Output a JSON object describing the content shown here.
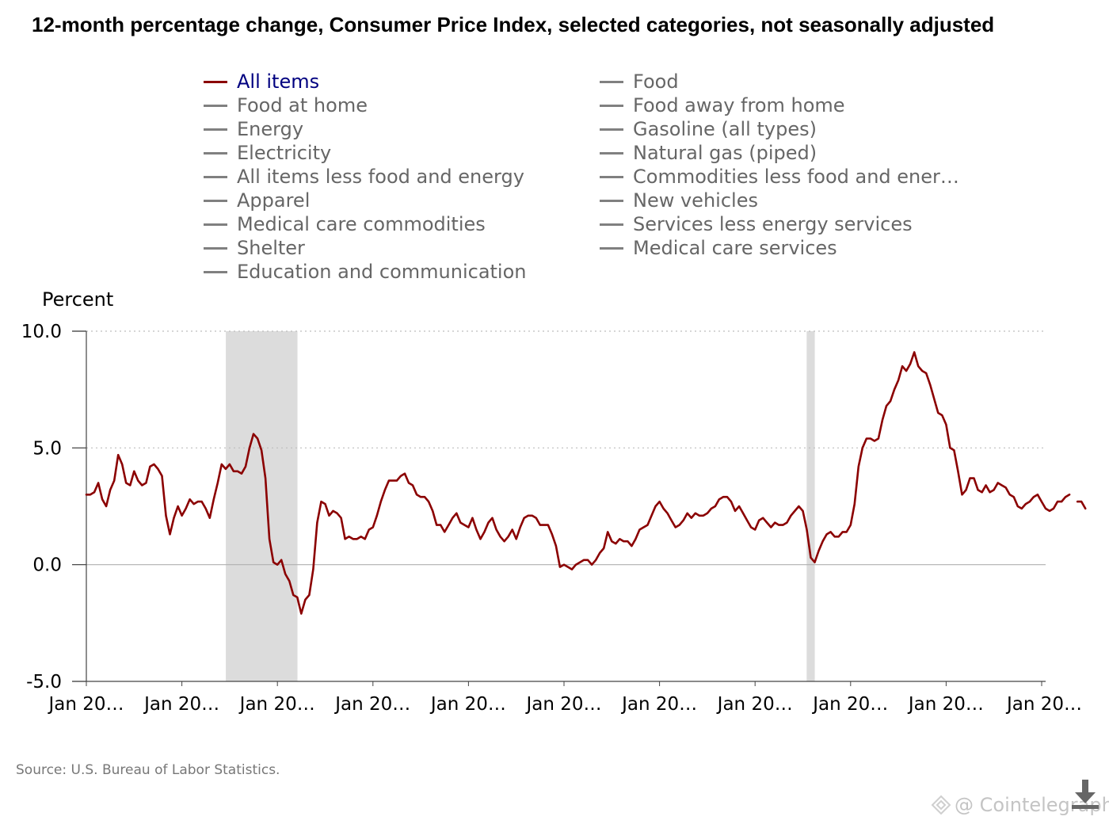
{
  "title": "12-month percentage change, Consumer Price Index, selected categories, not seasonally adjusted",
  "legend": {
    "items": [
      {
        "label": "All items",
        "active": true,
        "col": 0,
        "row": 0
      },
      {
        "label": "Food at home",
        "active": false,
        "col": 0,
        "row": 1
      },
      {
        "label": "Energy",
        "active": false,
        "col": 0,
        "row": 2
      },
      {
        "label": "Electricity",
        "active": false,
        "col": 0,
        "row": 3
      },
      {
        "label": "All items less food and energy",
        "active": false,
        "col": 0,
        "row": 4
      },
      {
        "label": "Apparel",
        "active": false,
        "col": 0,
        "row": 5
      },
      {
        "label": "Medical care commodities",
        "active": false,
        "col": 0,
        "row": 6
      },
      {
        "label": "Shelter",
        "active": false,
        "col": 0,
        "row": 7
      },
      {
        "label": "Education and communication",
        "active": false,
        "col": 0,
        "row": 8
      },
      {
        "label": "Food",
        "active": false,
        "col": 1,
        "row": 0
      },
      {
        "label": "Food away from home",
        "active": false,
        "col": 1,
        "row": 1
      },
      {
        "label": "Gasoline (all types)",
        "active": false,
        "col": 1,
        "row": 2
      },
      {
        "label": "Natural gas (piped)",
        "active": false,
        "col": 1,
        "row": 3
      },
      {
        "label": "Commodities less food and ener…",
        "active": false,
        "col": 1,
        "row": 4
      },
      {
        "label": "New vehicles",
        "active": false,
        "col": 1,
        "row": 5
      },
      {
        "label": "Services less energy services",
        "active": false,
        "col": 1,
        "row": 6
      },
      {
        "label": "Medical care services",
        "active": false,
        "col": 1,
        "row": 7
      }
    ]
  },
  "source": "Source: U.S. Bureau of Labor Statistics.",
  "watermark": "@ Cointelegraph",
  "colors": {
    "series": "#8b0000",
    "active_legend_text": "#000080",
    "inactive_legend": "#808080",
    "recession_band": "#dcdcdc",
    "grid": "#bdbdbd"
  },
  "icons": {
    "download": "download-icon",
    "watermark_logo": "cointelegraph-logo-icon"
  },
  "chart_data": {
    "type": "line",
    "title": "12-month percentage change, Consumer Price Index, selected categories, not seasonally adjusted",
    "ylabel": "Percent",
    "xlabel": "",
    "ylim": [
      -5.0,
      10.0
    ],
    "yticks": [
      -5.0,
      0.0,
      5.0,
      10.0
    ],
    "ytick_labels": [
      "-5.0",
      "0.0",
      "5.0",
      "10.0"
    ],
    "xlim": [
      2005.0,
      2025.083
    ],
    "xticks": [
      2005,
      2007,
      2009,
      2011,
      2013,
      2015,
      2017,
      2019,
      2021,
      2023,
      2025
    ],
    "xtick_labels": [
      "Jan 20…",
      "Jan 20…",
      "Jan 20…",
      "Jan 20…",
      "Jan 20…",
      "Jan 20…",
      "Jan 20…",
      "Jan 20…",
      "Jan 20…",
      "Jan 20…",
      "Jan 20…"
    ],
    "grid": "horizontal dotted at 5.0 and 10.0; solid at 0.0",
    "legend_placement": "top, two columns",
    "recessions": [
      [
        2007.92,
        2009.42
      ],
      [
        2020.08,
        2020.25
      ]
    ],
    "series": [
      {
        "name": "All items",
        "x_start": 2005.0,
        "x_step": 0.08333,
        "values": [
          3.0,
          3.0,
          3.1,
          3.5,
          2.8,
          2.5,
          3.2,
          3.6,
          4.7,
          4.3,
          3.5,
          3.4,
          4.0,
          3.6,
          3.4,
          3.5,
          4.2,
          4.3,
          4.1,
          3.8,
          2.1,
          1.3,
          2.0,
          2.5,
          2.1,
          2.4,
          2.8,
          2.6,
          2.7,
          2.7,
          2.4,
          2.0,
          2.8,
          3.5,
          4.3,
          4.1,
          4.3,
          4.0,
          4.0,
          3.9,
          4.2,
          5.0,
          5.6,
          5.4,
          4.9,
          3.7,
          1.1,
          0.1,
          0.0,
          0.2,
          -0.4,
          -0.7,
          -1.3,
          -1.4,
          -2.1,
          -1.5,
          -1.3,
          -0.2,
          1.8,
          2.7,
          2.6,
          2.1,
          2.3,
          2.2,
          2.0,
          1.1,
          1.2,
          1.1,
          1.1,
          1.2,
          1.1,
          1.5,
          1.6,
          2.1,
          2.7,
          3.2,
          3.6,
          3.6,
          3.6,
          3.8,
          3.9,
          3.5,
          3.4,
          3.0,
          2.9,
          2.9,
          2.7,
          2.3,
          1.7,
          1.7,
          1.4,
          1.7,
          2.0,
          2.2,
          1.8,
          1.7,
          1.6,
          2.0,
          1.5,
          1.1,
          1.4,
          1.8,
          2.0,
          1.5,
          1.2,
          1.0,
          1.2,
          1.5,
          1.1,
          1.6,
          2.0,
          2.1,
          2.1,
          2.0,
          1.7,
          1.7,
          1.7,
          1.3,
          0.8,
          -0.1,
          0.0,
          -0.1,
          -0.2,
          0.0,
          0.1,
          0.2,
          0.2,
          0.0,
          0.2,
          0.5,
          0.7,
          1.4,
          1.0,
          0.9,
          1.1,
          1.0,
          1.0,
          0.8,
          1.1,
          1.5,
          1.6,
          1.7,
          2.1,
          2.5,
          2.7,
          2.4,
          2.2,
          1.9,
          1.6,
          1.7,
          1.9,
          2.2,
          2.0,
          2.2,
          2.1,
          2.1,
          2.2,
          2.4,
          2.5,
          2.8,
          2.9,
          2.9,
          2.7,
          2.3,
          2.5,
          2.2,
          1.9,
          1.6,
          1.5,
          1.9,
          2.0,
          1.8,
          1.6,
          1.8,
          1.7,
          1.7,
          1.8,
          2.1,
          2.3,
          2.5,
          2.3,
          1.5,
          0.3,
          0.1,
          0.6,
          1.0,
          1.3,
          1.4,
          1.2,
          1.2,
          1.4,
          1.4,
          1.7,
          2.6,
          4.2,
          5.0,
          5.4,
          5.4,
          5.3,
          5.4,
          6.2,
          6.8,
          7.0,
          7.5,
          7.9,
          8.5,
          8.3,
          8.6,
          9.1,
          8.5,
          8.3,
          8.2,
          7.7,
          7.1,
          6.5,
          6.4,
          6.0,
          5.0,
          4.9,
          4.0,
          3.0,
          3.2,
          3.7,
          3.7,
          3.2,
          3.1,
          3.4,
          3.1,
          3.2,
          3.5,
          3.4,
          3.3,
          3.0,
          2.9,
          2.5,
          2.4,
          2.6,
          2.7,
          2.9,
          3.0,
          2.7,
          2.4,
          2.3,
          2.4,
          2.7,
          2.7,
          2.9,
          3.0,
          null,
          2.7,
          2.7,
          2.4
        ]
      }
    ]
  }
}
